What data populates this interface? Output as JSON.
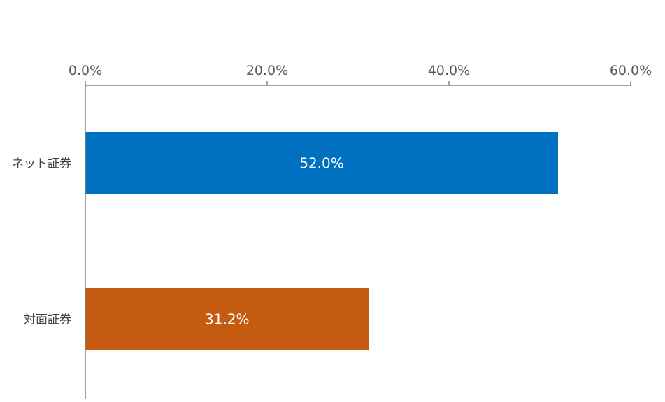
{
  "chart_data": {
    "type": "bar",
    "orientation": "horizontal",
    "title": "",
    "xlabel": "",
    "ylabel": "",
    "categories": [
      "ネット証券",
      "対面証券"
    ],
    "values": [
      52.0,
      31.2
    ],
    "data_labels": [
      "52.0%",
      "31.2%"
    ],
    "colors": [
      "#0070C0",
      "#C55A11"
    ],
    "xlim": [
      0,
      60
    ],
    "x_ticks": [
      0,
      20,
      40,
      60
    ],
    "x_tick_labels": [
      "0.0%",
      "20.0%",
      "40.0%",
      "60.0%"
    ],
    "x_axis_position": "top",
    "grid": false,
    "legend": "none"
  }
}
